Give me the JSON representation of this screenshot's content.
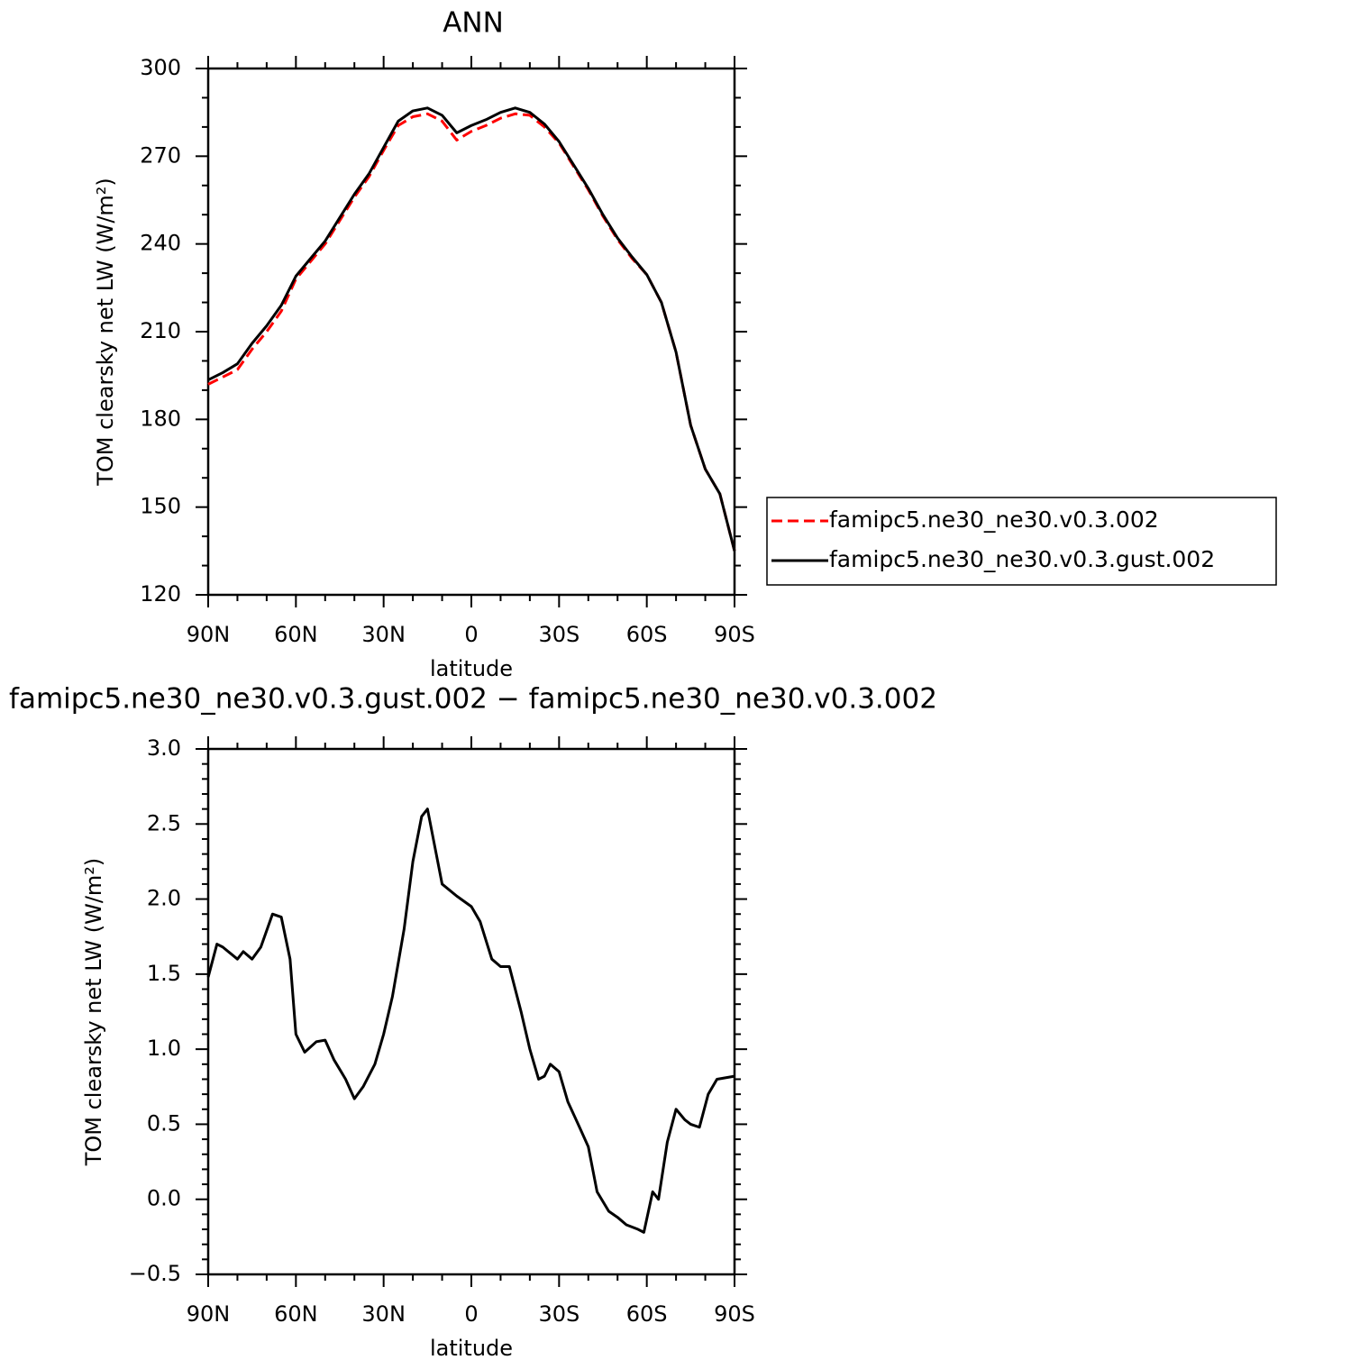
{
  "chart_data": [
    {
      "type": "line",
      "title": "ANN",
      "xlabel": "latitude",
      "ylabel": "TOM clearsky net LW (W/m²)",
      "x": [
        90,
        85,
        80,
        75,
        70,
        65,
        60,
        55,
        50,
        45,
        40,
        35,
        30,
        25,
        20,
        15,
        10,
        5,
        0,
        -5,
        -10,
        -15,
        -20,
        -25,
        -30,
        -35,
        -40,
        -45,
        -50,
        -55,
        -60,
        -65,
        -70,
        -75,
        -80,
        -85,
        -90
      ],
      "series": [
        {
          "name": "famipc5.ne30_ne30.v0.3.002",
          "color": "#ff0000",
          "dash": "dashed",
          "values": [
            192,
            194.5,
            197,
            204,
            210,
            217,
            228,
            234,
            240,
            248,
            256,
            263,
            272,
            280.5,
            283.5,
            284.5,
            282,
            275.5,
            278.5,
            280.5,
            283,
            284.5,
            284,
            280,
            274.5,
            266.5,
            258.5,
            249.5,
            241.5,
            235,
            229.5,
            220,
            203,
            178,
            163,
            154.5,
            135
          ]
        },
        {
          "name": "famipc5.ne30_ne30.v0.3.gust.002",
          "color": "#000000",
          "dash": "solid",
          "values": [
            193.5,
            196,
            199,
            206,
            212,
            219,
            229,
            235,
            241,
            249,
            257,
            264,
            273,
            282,
            285.5,
            286.5,
            284,
            278,
            280.5,
            282.5,
            285,
            286.5,
            285,
            281,
            275,
            267,
            259,
            250,
            242,
            235.5,
            229.5,
            220,
            203,
            178,
            163,
            154.5,
            135
          ]
        }
      ],
      "xlim": [
        90,
        -90
      ],
      "xticks": [
        {
          "value": 90,
          "label": "90N"
        },
        {
          "value": 60,
          "label": "60N"
        },
        {
          "value": 30,
          "label": "30N"
        },
        0,
        {
          "value": -30,
          "label": "30S"
        },
        {
          "value": -60,
          "label": "60S"
        },
        {
          "value": -90,
          "label": "90S"
        }
      ],
      "ylim": [
        120,
        300
      ],
      "yticks": [
        120,
        150,
        180,
        210,
        240,
        270,
        300
      ],
      "legend": "right"
    },
    {
      "type": "line",
      "title": "famipc5.ne30_ne30.v0.3.gust.002 − famipc5.ne30_ne30.v0.3.002",
      "xlabel": "latitude",
      "ylabel": "TOM clearsky net LW (W/m²)",
      "x": [
        90,
        87,
        85,
        80,
        78,
        75,
        72,
        68,
        65,
        62,
        60,
        57,
        53,
        50,
        47,
        43,
        40,
        37,
        33,
        30,
        27,
        23,
        20,
        17,
        15,
        12,
        10,
        5,
        0,
        -3,
        -7,
        -10,
        -13,
        -17,
        -20,
        -23,
        -25,
        -27,
        -30,
        -33,
        -37,
        -40,
        -43,
        -47,
        -50,
        -53,
        -57,
        -59,
        -62,
        -64,
        -67,
        -70,
        -73,
        -75,
        -78,
        -81,
        -84,
        -90
      ],
      "color": "#000000",
      "values": [
        1.48,
        1.7,
        1.68,
        1.6,
        1.65,
        1.6,
        1.68,
        1.9,
        1.88,
        1.6,
        1.1,
        0.98,
        1.05,
        1.06,
        0.93,
        0.8,
        0.67,
        0.75,
        0.9,
        1.1,
        1.35,
        1.8,
        2.25,
        2.55,
        2.6,
        2.3,
        2.1,
        2.02,
        1.95,
        1.85,
        1.6,
        1.55,
        1.55,
        1.25,
        1.0,
        0.8,
        0.82,
        0.9,
        0.85,
        0.65,
        0.48,
        0.35,
        0.05,
        -0.08,
        -0.12,
        -0.17,
        -0.2,
        -0.22,
        0.05,
        0.0,
        0.38,
        0.6,
        0.53,
        0.5,
        0.48,
        0.7,
        0.8,
        0.82
      ],
      "xlim": [
        90,
        -90
      ],
      "xticks": [
        {
          "value": 90,
          "label": "90N"
        },
        {
          "value": 60,
          "label": "60N"
        },
        {
          "value": 30,
          "label": "30N"
        },
        0,
        {
          "value": -30,
          "label": "30S"
        },
        {
          "value": -60,
          "label": "60S"
        },
        {
          "value": -90,
          "label": "90S"
        }
      ],
      "ylim": [
        -0.5,
        3.0
      ],
      "yticks": [
        {
          "value": -0.5,
          "label": "−0.5"
        },
        {
          "value": 0,
          "label": "0.0"
        },
        0.5,
        {
          "value": 1,
          "label": "1.0"
        },
        1.5,
        {
          "value": 2,
          "label": "2.0"
        },
        2.5,
        {
          "value": 3,
          "label": "3.0"
        }
      ]
    }
  ]
}
